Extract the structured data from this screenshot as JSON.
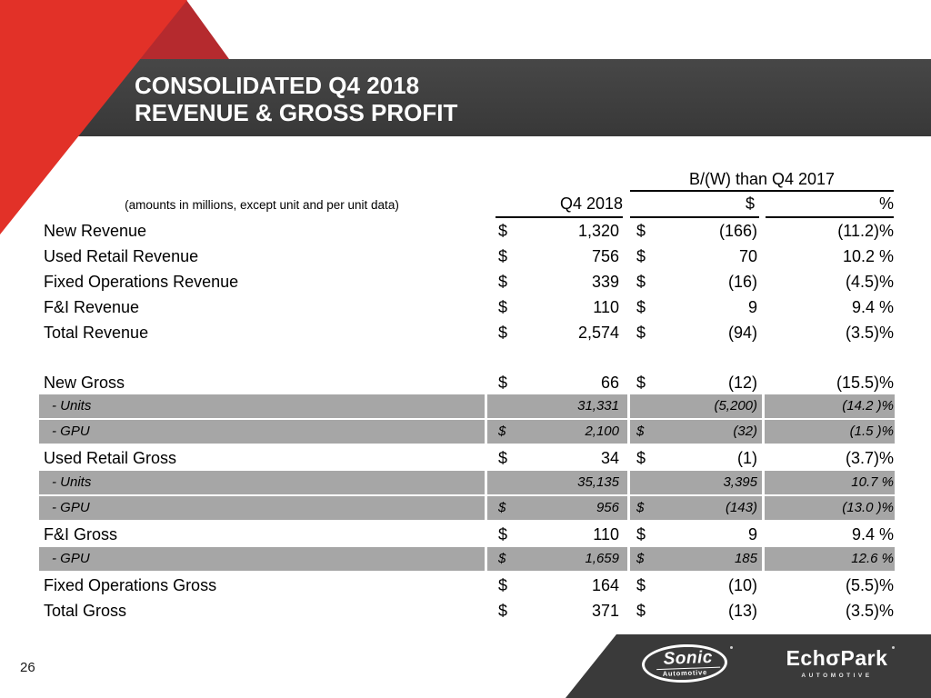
{
  "slide": {
    "title_line1": "CONSOLIDATED Q4 2018",
    "title_line2": "REVENUE & GROSS PROFIT",
    "page_number": "26"
  },
  "table": {
    "group_header": "B/(W) than Q4 2017",
    "note": "(amounts in millions, except unit and per unit data)",
    "col_headers": {
      "q4": "Q4 2018",
      "dollar": "$",
      "pct": "%"
    },
    "rows": [
      {
        "style": "normal",
        "label": "New Revenue",
        "d1": "$",
        "v1": "1,320",
        "d2": "$",
        "v2": "(166)",
        "pct": "(11.2)%"
      },
      {
        "style": "normal",
        "label": "Used Retail Revenue",
        "d1": "$",
        "v1": "756",
        "d2": "$",
        "v2": "70",
        "pct": "10.2 %"
      },
      {
        "style": "normal",
        "label": "Fixed Operations Revenue",
        "d1": "$",
        "v1": "339",
        "d2": "$",
        "v2": "(16)",
        "pct": "(4.5)%"
      },
      {
        "style": "normal",
        "label": "F&I Revenue",
        "d1": "$",
        "v1": "110",
        "d2": "$",
        "v2": "9",
        "pct": "9.4 %"
      },
      {
        "style": "normal",
        "label": "Total Revenue",
        "d1": "$",
        "v1": "2,574",
        "d2": "$",
        "v2": "(94)",
        "pct": "(3.5)%"
      },
      {
        "style": "normal",
        "label": "New Gross",
        "d1": "$",
        "v1": "66",
        "d2": "$",
        "v2": "(12)",
        "pct": "(15.5)%"
      },
      {
        "style": "sub",
        "label": "- Units",
        "d1": "",
        "v1": "31,331",
        "d2": "",
        "v2": "(5,200)",
        "pct": "(14.2 )%"
      },
      {
        "style": "sub",
        "label": "- GPU",
        "d1": "$",
        "v1": "2,100",
        "d2": "$",
        "v2": "(32)",
        "pct": "(1.5 )%"
      },
      {
        "style": "normal",
        "label": "Used Retail Gross",
        "d1": "$",
        "v1": "34",
        "d2": "$",
        "v2": "(1)",
        "pct": "(3.7)%"
      },
      {
        "style": "sub",
        "label": "- Units",
        "d1": "",
        "v1": "35,135",
        "d2": "",
        "v2": "3,395",
        "pct": "10.7 %"
      },
      {
        "style": "sub",
        "label": "- GPU",
        "d1": "$",
        "v1": "956",
        "d2": "$",
        "v2": "(143)",
        "pct": "(13.0 )%"
      },
      {
        "style": "normal",
        "label": "F&I Gross",
        "d1": "$",
        "v1": "110",
        "d2": "$",
        "v2": "9",
        "pct": "9.4 %"
      },
      {
        "style": "sub",
        "label": "- GPU",
        "d1": "$",
        "v1": "1,659",
        "d2": "$",
        "v2": "185",
        "pct": "12.6 %"
      },
      {
        "style": "normal",
        "label": "Fixed Operations Gross",
        "d1": "$",
        "v1": "164",
        "d2": "$",
        "v2": "(10)",
        "pct": "(5.5)%"
      },
      {
        "style": "normal",
        "label": "Total Gross",
        "d1": "$",
        "v1": "371",
        "d2": "$",
        "v2": "(13)",
        "pct": "(3.5)%"
      }
    ]
  },
  "footer": {
    "sonic_name": "Sonic",
    "sonic_sub": "Automotive",
    "echopark_wordmark": "EchσPark",
    "echopark_sub": "AUTOMOTIVE"
  },
  "colors": {
    "accent_red": "#e23128",
    "accent_dark_red": "#b52a2e",
    "header_bar": "#3f3f3f",
    "band_gray": "#a6a6a6",
    "footer_bg": "#3a3a3a"
  }
}
